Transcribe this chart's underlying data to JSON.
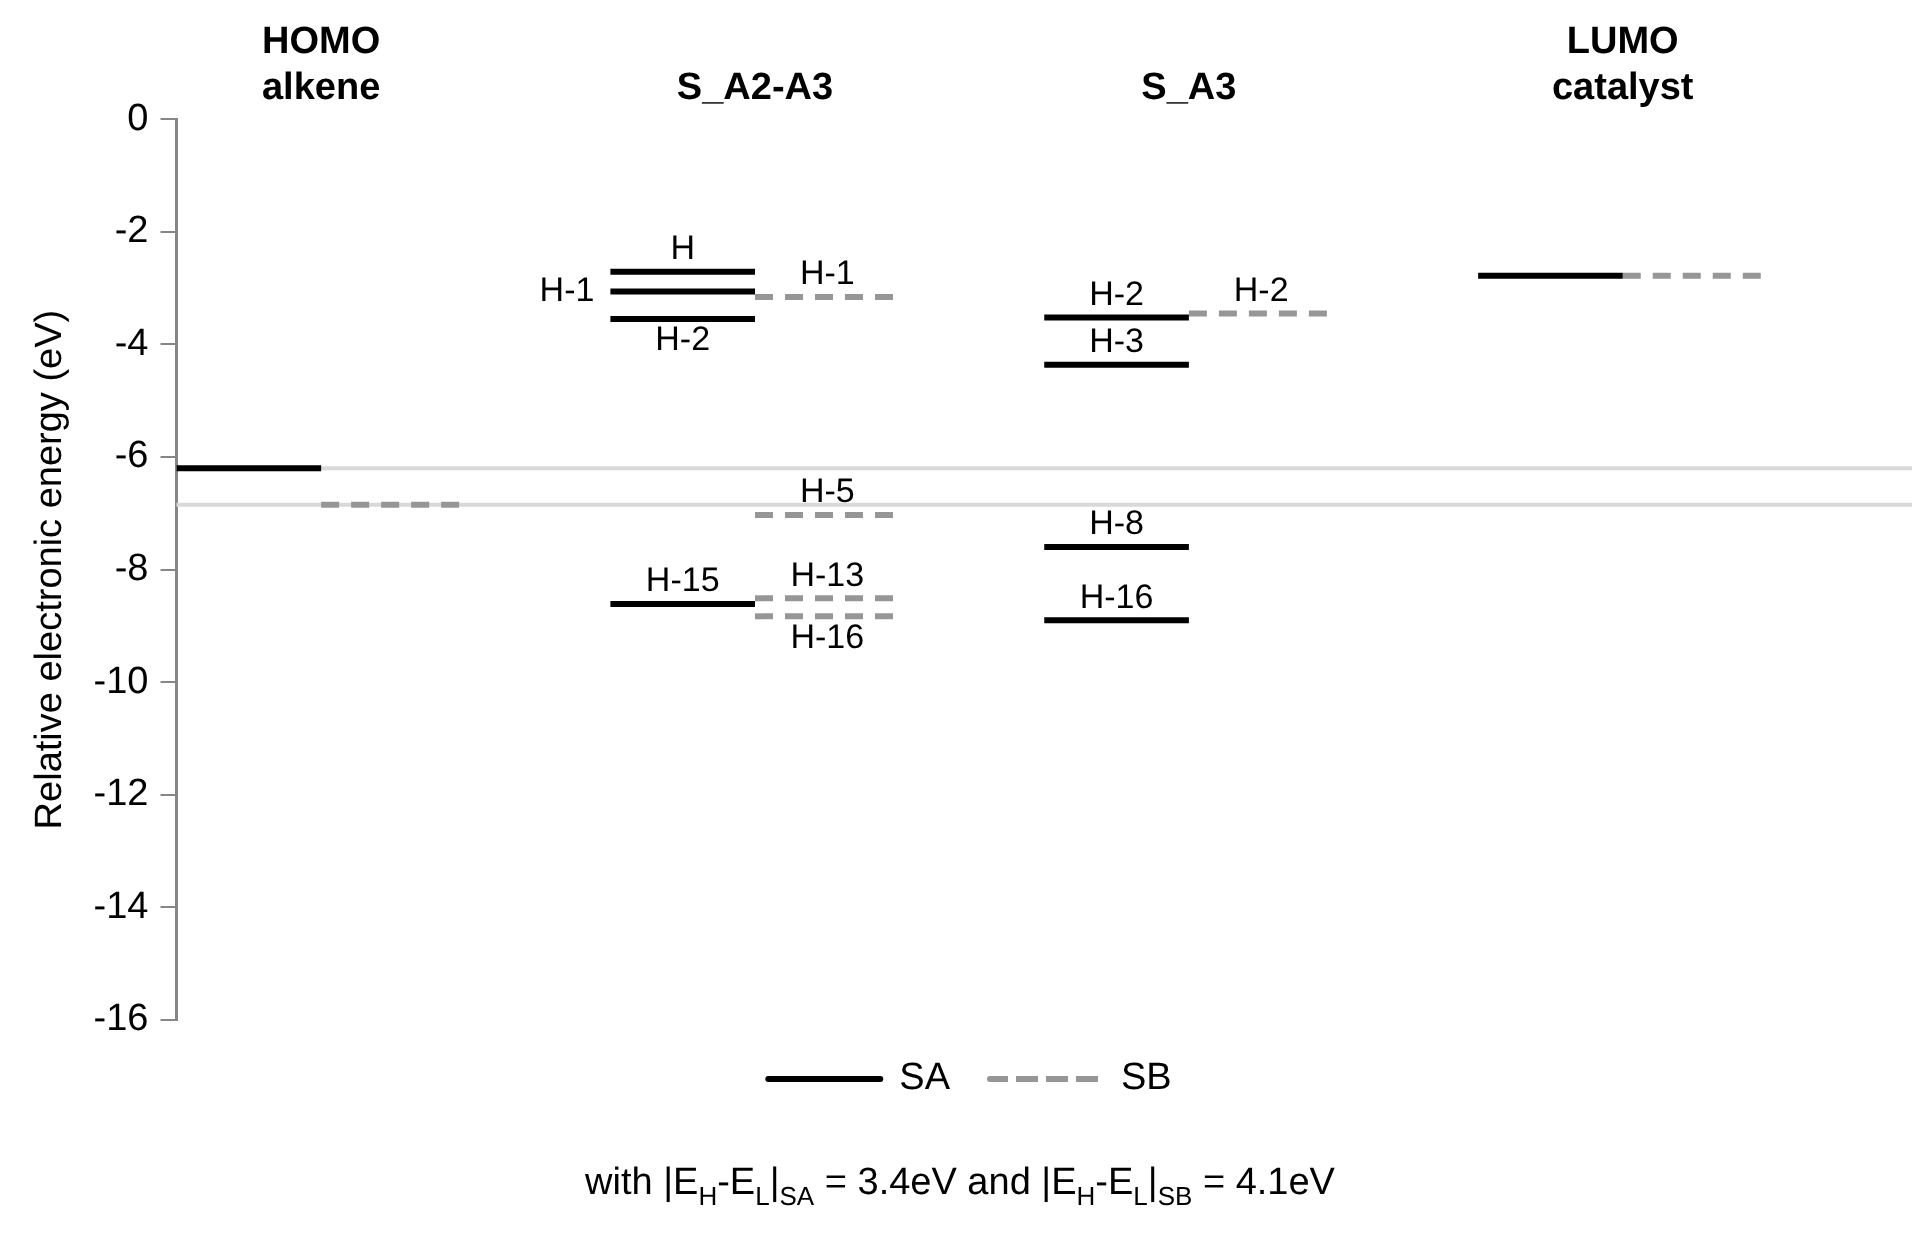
{
  "chart_data": {
    "type": "line",
    "ylabel": "Relative electronic energy (eV)",
    "ylim": [
      -16,
      0
    ],
    "yticks": [
      -16,
      -14,
      -12,
      -10,
      -8,
      -6,
      -4,
      -2,
      0
    ],
    "grid": false,
    "legend": "bottom",
    "marker": "none",
    "categories": [
      null,
      "HOMO\nalkene",
      null,
      null,
      "S_A2-A3",
      null,
      null,
      "S_A3",
      null,
      null,
      "LUMO\ncatalyst",
      null,
      null
    ],
    "series": [
      {
        "name": "SA",
        "color": "#000000",
        "line_style": "solid",
        "values": [
          -6.2,
          -6.2,
          null,
          -2.71,
          -2.71,
          null,
          -3.52,
          -3.52,
          null,
          -2.78,
          -2.78,
          null,
          null
        ],
        "value_labels": [
          null,
          null,
          null,
          "H",
          null,
          null,
          "H-2",
          null,
          null,
          null,
          null,
          null,
          null
        ]
      },
      {
        "color": "#000000",
        "line_style": "solid",
        "values": [
          null,
          null,
          null,
          -3.06,
          -3.06,
          null,
          -4.36,
          -4.36,
          null,
          null,
          null,
          null,
          null
        ],
        "value_labels": [
          null,
          null,
          null,
          "H-1",
          null,
          null,
          "H-3",
          null,
          null,
          null,
          null,
          null,
          null
        ]
      },
      {
        "color": "#000000",
        "line_style": "solid",
        "values": [
          null,
          null,
          null,
          -3.55,
          -3.55,
          null,
          -7.6,
          -7.6,
          null,
          null,
          null,
          null,
          null
        ],
        "value_labels": [
          null,
          null,
          null,
          "H-2",
          null,
          null,
          "H-8",
          null,
          null,
          null,
          null,
          null,
          null
        ]
      },
      {
        "color": "#000000",
        "line_style": "solid",
        "values": [
          null,
          null,
          null,
          -8.61,
          -8.61,
          null,
          -8.9,
          -8.9,
          null,
          null,
          null,
          null,
          null
        ],
        "value_labels": [
          null,
          null,
          null,
          "H-15",
          null,
          null,
          "H-16",
          null,
          null,
          null,
          null,
          null,
          null
        ]
      },
      {
        "name": "SB",
        "color": "#969696",
        "line_style": "dashed",
        "values": [
          null,
          -6.85,
          -6.85,
          null,
          -3.16,
          -3.16,
          null,
          -3.45,
          -3.45,
          null,
          -2.78,
          -2.78,
          null
        ],
        "value_labels": [
          null,
          null,
          null,
          null,
          "H-1",
          null,
          null,
          "H-2",
          null,
          null,
          null,
          null,
          null
        ]
      },
      {
        "color": "#969696",
        "line_style": "dashed",
        "values": [
          null,
          null,
          null,
          null,
          -7.03,
          -7.03,
          null,
          null,
          null,
          null,
          null,
          null,
          null
        ],
        "value_labels": [
          null,
          null,
          null,
          null,
          "H-5",
          null,
          null,
          null,
          null,
          null,
          null,
          null,
          null
        ]
      },
      {
        "color": "#969696",
        "line_style": "dashed",
        "values": [
          null,
          null,
          null,
          null,
          -8.51,
          -8.51,
          null,
          null,
          null,
          null,
          null,
          null,
          null
        ],
        "value_labels": [
          null,
          null,
          null,
          null,
          "H-13",
          null,
          null,
          null,
          null,
          null,
          null,
          null,
          null
        ]
      },
      {
        "color": "#969696",
        "line_style": "dashed",
        "values": [
          null,
          null,
          null,
          null,
          -8.83,
          -8.83,
          null,
          null,
          null,
          null,
          null,
          null,
          null
        ],
        "value_labels": [
          null,
          null,
          null,
          null,
          "H-16",
          null,
          null,
          null,
          null,
          null,
          null,
          null,
          null
        ]
      }
    ],
    "ref_lines": [
      {
        "axis": "y",
        "value": -6.2,
        "color": "#d9d9d9"
      },
      {
        "axis": "y",
        "value": -6.85,
        "color": "#d9d9d9"
      }
    ],
    "annotations": [
      "with |E$_{H}$-E$_{L}$|$_{SA}$ = 3.4eV and |E$_{H}$-E$_{L}$|$_{SB}$ = 4.1eV"
    ]
  }
}
